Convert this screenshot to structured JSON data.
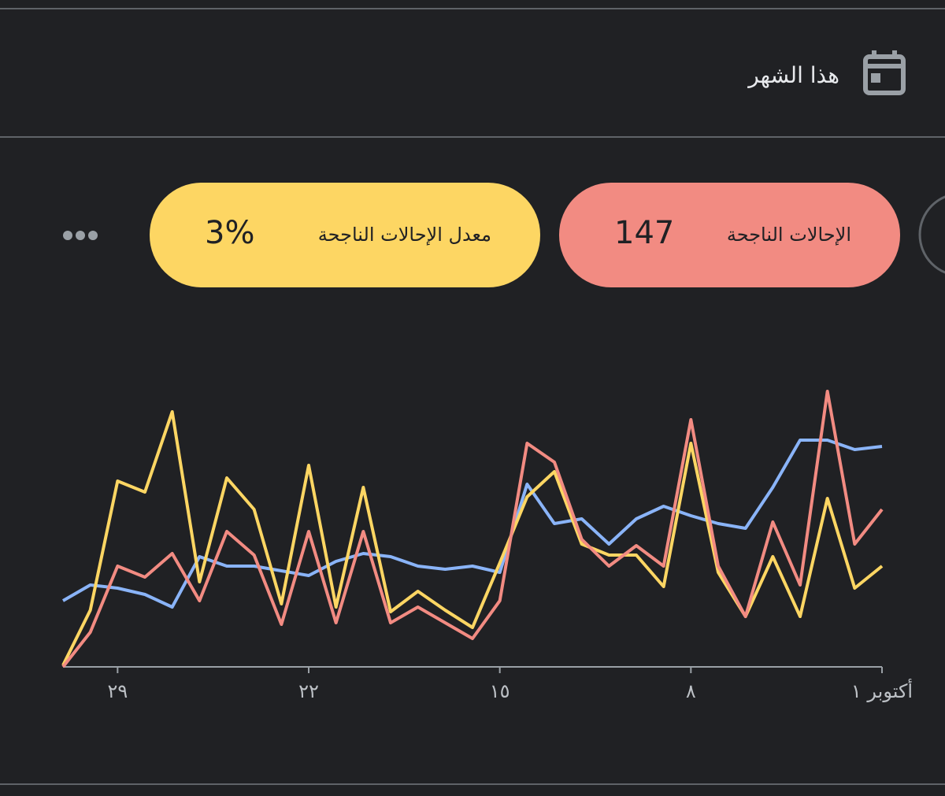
{
  "header": {
    "title": "هذا الشهر"
  },
  "chart_data": {
    "type": "line",
    "categories": [
      "أكتوبر ١",
      null,
      null,
      null,
      null,
      null,
      null,
      "٨",
      null,
      null,
      null,
      null,
      null,
      null,
      "١٥",
      null,
      null,
      null,
      null,
      null,
      null,
      "٢٢",
      null,
      null,
      null,
      null,
      null,
      null,
      "٢٩",
      null,
      null
    ],
    "ylim": [
      0,
      100
    ],
    "series": [
      {
        "name": "الإحالات الناجحة",
        "summary": "147",
        "color": "#f28b82",
        "values": [
          50,
          39,
          87.5,
          26,
          46,
          16,
          32,
          78.5,
          32,
          38.5,
          32,
          40.5,
          65,
          71,
          21,
          9,
          14,
          19,
          14,
          43,
          14,
          43,
          13.5,
          35.5,
          43,
          21,
          36,
          28.5,
          32,
          11,
          0
        ]
      },
      {
        "name": "معدل الإحالات الناجحة",
        "summary": "3%",
        "color": "#fdd663",
        "values": [
          32,
          25,
          53.5,
          16,
          35,
          16,
          30,
          71,
          25.5,
          35.5,
          35.5,
          39,
          62,
          54,
          33,
          12.5,
          18,
          24,
          17.5,
          57,
          19,
          64,
          20,
          50,
          60,
          27,
          81,
          55.5,
          59,
          18,
          0.5
        ]
      },
      {
        "color": "#8ab4f8",
        "values": [
          70,
          69,
          72,
          72,
          57,
          44,
          45.5,
          48,
          51,
          47,
          39,
          47,
          45.5,
          58,
          30,
          32,
          31,
          32,
          35,
          36,
          33.5,
          29,
          30.5,
          32,
          32,
          35,
          19,
          23,
          25,
          26,
          21
        ]
      }
    ]
  }
}
